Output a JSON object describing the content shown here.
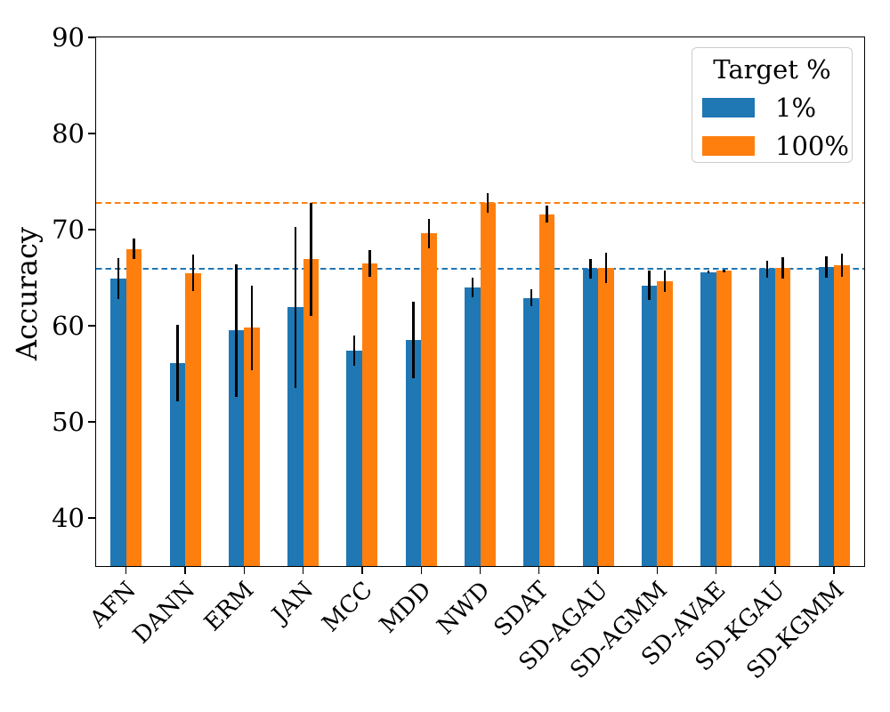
{
  "chart_data": {
    "type": "bar",
    "title": "",
    "ylabel": "Accuracy",
    "xlabel": "",
    "categories": [
      "AFN",
      "DANN",
      "ERM",
      "JAN",
      "MCC",
      "MDD",
      "NWD",
      "SDAT",
      "SD-AGAU",
      "SD-AGMM",
      "SD-AVAE",
      "SD-KGAU",
      "SD-KGMM"
    ],
    "series": [
      {
        "name": "1%",
        "color": "#1f77b4",
        "values": [
          64.9,
          56.1,
          59.5,
          61.9,
          57.4,
          58.5,
          64.0,
          62.9,
          65.9,
          64.2,
          65.6,
          65.9,
          66.1
        ],
        "errors": [
          2.1,
          4.0,
          6.9,
          8.4,
          1.6,
          4.0,
          1.0,
          0.9,
          1.0,
          1.5,
          0.15,
          0.9,
          1.1
        ]
      },
      {
        "name": "100%",
        "color": "#ff7f0e",
        "values": [
          68.0,
          65.5,
          59.8,
          66.9,
          66.5,
          69.6,
          72.8,
          71.6,
          66.0,
          64.6,
          65.7,
          66.0,
          66.3
        ],
        "errors": [
          1.1,
          1.9,
          4.4,
          5.9,
          1.4,
          1.5,
          1.0,
          0.9,
          1.6,
          1.1,
          0.15,
          1.1,
          1.2
        ]
      }
    ],
    "reference_lines": [
      {
        "value": 65.95,
        "color": "#1f77b4",
        "style": "dashed"
      },
      {
        "value": 72.8,
        "color": "#ff7f0e",
        "style": "dashed"
      }
    ],
    "error_bar_color": "#000000",
    "ylim": [
      35,
      90
    ],
    "yticks": [
      40,
      50,
      60,
      70,
      80,
      90
    ],
    "grid": false,
    "legend": {
      "title": "Target %",
      "position": "upper right"
    }
  }
}
